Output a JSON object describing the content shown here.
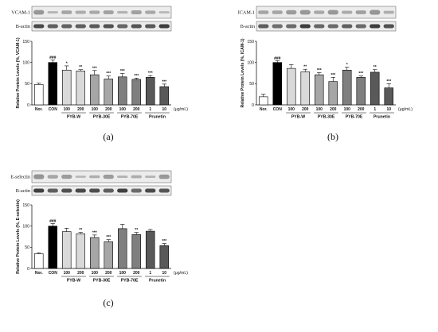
{
  "chart_data": [
    {
      "type": "bar",
      "panel_label": "(a)",
      "blot_labels": [
        "VCAM-1",
        "B-actin"
      ],
      "ylabel": "Relative Protein Levels (%, VCAM-1)",
      "ylim": [
        0,
        150
      ],
      "yticks": [
        0,
        50,
        100,
        150
      ],
      "categories": [
        "Nor.",
        "CON",
        "100",
        "200",
        "100",
        "200",
        "100",
        "200",
        "1",
        "10"
      ],
      "groups": [
        {
          "label": "PYB-W",
          "start": 2,
          "end": 3
        },
        {
          "label": "PYB-30E",
          "start": 4,
          "end": 5
        },
        {
          "label": "PYB-70E",
          "start": 6,
          "end": 7
        },
        {
          "label": "Prunetin",
          "start": 8,
          "end": 9
        }
      ],
      "unit_label": "(μg/mL)",
      "values": [
        48,
        100,
        82,
        80,
        71,
        61,
        66,
        60,
        65,
        43
      ],
      "errors": [
        3,
        6,
        10,
        3,
        10,
        7,
        8,
        3,
        4,
        6
      ],
      "significance": [
        "",
        "###",
        "*",
        "**",
        "***",
        "***",
        "***",
        "***",
        "***",
        "***"
      ],
      "colors": [
        "#ffffff",
        "#000000",
        "#d9d9d9",
        "#d9d9d9",
        "#a6a6a6",
        "#a6a6a6",
        "#7f7f7f",
        "#7f7f7f",
        "#595959",
        "#595959"
      ]
    },
    {
      "type": "bar",
      "panel_label": "(b)",
      "blot_labels": [
        "ICAM-1",
        "B-actin"
      ],
      "ylabel": "Relative Protein Levels (%, ICAM-1)",
      "ylim": [
        0,
        150
      ],
      "yticks": [
        0,
        50,
        100,
        150
      ],
      "categories": [
        "Nor.",
        "CON",
        "100",
        "200",
        "100",
        "200",
        "100",
        "200",
        "1",
        "10"
      ],
      "groups": [
        {
          "label": "PYB-W",
          "start": 2,
          "end": 3
        },
        {
          "label": "PYB-30E",
          "start": 4,
          "end": 5
        },
        {
          "label": "PYB-70E",
          "start": 6,
          "end": 7
        },
        {
          "label": "Prunetin",
          "start": 8,
          "end": 9
        }
      ],
      "unit_label": "(μg/mL)",
      "values": [
        19,
        100,
        86,
        78,
        71,
        55,
        82,
        65,
        77,
        40
      ],
      "errors": [
        6,
        4,
        9,
        6,
        5,
        10,
        7,
        3,
        6,
        10
      ],
      "significance": [
        "",
        "###",
        "",
        "**",
        "***",
        "***",
        "*",
        "***",
        "**",
        "***"
      ],
      "colors": [
        "#ffffff",
        "#000000",
        "#d9d9d9",
        "#d9d9d9",
        "#a6a6a6",
        "#a6a6a6",
        "#7f7f7f",
        "#7f7f7f",
        "#595959",
        "#595959"
      ]
    },
    {
      "type": "bar",
      "panel_label": "(c)",
      "blot_labels": [
        "E-selectin",
        "B-actin"
      ],
      "ylabel": "Relative Protein Levels (%, E-selectin)",
      "ylim": [
        0,
        150
      ],
      "yticks": [
        0,
        50,
        100,
        150
      ],
      "categories": [
        "Nor.",
        "CON",
        "100",
        "200",
        "100",
        "200",
        "100",
        "200",
        "1",
        "10"
      ],
      "groups": [
        {
          "label": "PYB-W",
          "start": 2,
          "end": 3
        },
        {
          "label": "PYB-30E",
          "start": 4,
          "end": 5
        },
        {
          "label": "PYB-70E",
          "start": 6,
          "end": 7
        },
        {
          "label": "Prunetin",
          "start": 8,
          "end": 9
        }
      ],
      "unit_label": "(μg/mL)",
      "values": [
        35,
        100,
        87,
        82,
        73,
        63,
        94,
        80,
        88,
        54
      ],
      "errors": [
        2,
        6,
        8,
        3,
        6,
        5,
        10,
        5,
        4,
        5
      ],
      "significance": [
        "",
        "###",
        "",
        "**",
        "***",
        "***",
        "",
        "**",
        "",
        "***"
      ],
      "colors": [
        "#ffffff",
        "#000000",
        "#d9d9d9",
        "#d9d9d9",
        "#a6a6a6",
        "#a6a6a6",
        "#7f7f7f",
        "#7f7f7f",
        "#595959",
        "#595959"
      ]
    }
  ]
}
